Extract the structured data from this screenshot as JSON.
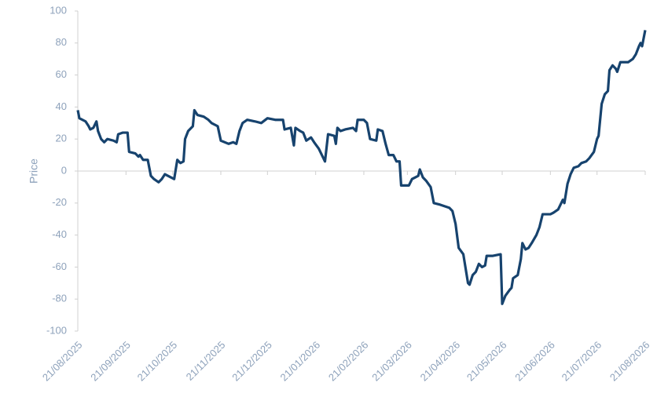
{
  "chart_data": {
    "type": "line",
    "y_label": "Price",
    "color": "#17436e",
    "x": [
      "21/08/2025",
      "22/08/2025",
      "26/08/2025",
      "28/08/2025",
      "29/08/2025",
      "31/08/2025",
      "02/09/2025",
      "03/09/2025",
      "05/09/2025",
      "07/09/2025",
      "09/09/2025",
      "13/09/2025",
      "15/09/2025",
      "16/09/2025",
      "19/09/2025",
      "22/09/2025",
      "23/09/2025",
      "27/09/2025",
      "29/09/2025",
      "30/09/2025",
      "02/10/2025",
      "05/10/2025",
      "06/10/2025",
      "07/10/2025",
      "09/10/2025",
      "12/10/2025",
      "14/10/2025",
      "16/10/2025",
      "20/10/2025",
      "22/10/2025",
      "24/10/2025",
      "26/10/2025",
      "28/10/2025",
      "29/10/2025",
      "31/10/2025",
      "03/11/2025",
      "04/11/2025",
      "06/11/2025",
      "10/11/2025",
      "13/11/2025",
      "15/11/2025",
      "19/11/2025",
      "21/11/2025",
      "26/11/2025",
      "29/11/2025",
      "01/12/2025",
      "03/12/2025",
      "05/12/2025",
      "08/12/2025",
      "13/12/2025",
      "17/12/2025",
      "21/12/2025",
      "26/12/2025",
      "31/12/2025",
      "01/01/2026",
      "05/01/2026",
      "07/01/2026",
      "08/01/2026",
      "11/01/2026",
      "13/01/2026",
      "15/01/2026",
      "18/01/2026",
      "20/01/2026",
      "23/01/2026",
      "26/01/2026",
      "27/01/2026",
      "29/01/2026",
      "02/02/2026",
      "03/02/2026",
      "04/02/2026",
      "06/02/2026",
      "09/02/2026",
      "14/02/2026",
      "16/02/2026",
      "17/02/2026",
      "21/02/2026",
      "23/02/2026",
      "25/02/2026",
      "01/03/2026",
      "02/03/2026",
      "05/03/2026",
      "07/03/2026",
      "09/03/2026",
      "12/03/2026",
      "14/03/2026",
      "16/03/2026",
      "17/03/2026",
      "22/03/2026",
      "24/03/2026",
      "26/03/2026",
      "28/03/2026",
      "29/03/2026",
      "31/03/2026",
      "02/04/2026",
      "05/04/2026",
      "07/04/2026",
      "11/04/2026",
      "14/04/2026",
      "17/04/2026",
      "19/04/2026",
      "21/04/2026",
      "23/04/2026",
      "26/04/2026",
      "29/04/2026",
      "30/04/2026",
      "02/05/2026",
      "04/05/2026",
      "06/05/2026",
      "08/05/2026",
      "10/05/2026",
      "11/05/2026",
      "15/05/2026",
      "20/05/2026",
      "21/05/2026",
      "23/05/2026",
      "26/05/2026",
      "27/05/2026",
      "28/05/2026",
      "31/05/2026",
      "02/06/2026",
      "03/06/2026",
      "05/06/2026",
      "07/06/2026",
      "09/06/2026",
      "12/06/2026",
      "14/06/2026",
      "16/06/2026",
      "21/06/2026",
      "23/06/2026",
      "26/06/2026",
      "28/06/2026",
      "29/06/2026",
      "30/06/2026",
      "02/07/2026",
      "04/07/2026",
      "06/07/2026",
      "09/07/2026",
      "11/07/2026",
      "14/07/2026",
      "16/07/2026",
      "19/07/2026",
      "21/07/2026",
      "22/07/2026",
      "24/07/2026",
      "26/07/2026",
      "28/07/2026",
      "29/07/2026",
      "31/07/2026",
      "02/08/2026",
      "03/08/2026",
      "05/08/2026",
      "10/08/2026",
      "13/08/2026",
      "15/08/2026",
      "17/08/2026",
      "18/08/2026",
      "19/08/2026",
      "21/08/2026"
    ],
    "values": [
      38,
      33,
      31,
      28,
      26,
      27,
      31,
      25,
      20,
      18,
      20,
      19,
      18,
      23,
      24,
      24,
      12,
      11,
      9,
      10,
      7,
      7,
      2,
      -3,
      -5,
      -7,
      -5,
      -2,
      -4,
      -5,
      7,
      5,
      6,
      20,
      25,
      28,
      38,
      35,
      34,
      32,
      30,
      28,
      19,
      17,
      18,
      17,
      25,
      30,
      32,
      31,
      30,
      33,
      32,
      32,
      26,
      27,
      16,
      27,
      25,
      24,
      19,
      21,
      18,
      14,
      8,
      6,
      23,
      22,
      17,
      27,
      25,
      26,
      27,
      25,
      32,
      32,
      30,
      20,
      19,
      26,
      25,
      17,
      10,
      10,
      6,
      6,
      -9,
      -9,
      -5,
      -4,
      -3,
      1,
      -4,
      -6,
      -10,
      -20,
      -21,
      -22,
      -23,
      -25,
      -33,
      -48,
      -52,
      -70,
      -71,
      -65,
      -63,
      -58,
      -60,
      -59,
      -53,
      -53,
      -52,
      -83,
      -78,
      -74,
      -73,
      -67,
      -65,
      -55,
      -45,
      -49,
      -48,
      -45,
      -40,
      -35,
      -27,
      -27,
      -26,
      -24,
      -20,
      -18,
      -20,
      -8,
      -2,
      2,
      3,
      5,
      6,
      8,
      12,
      20,
      22,
      42,
      48,
      50,
      63,
      66,
      64,
      62,
      68,
      68,
      70,
      73,
      78,
      80,
      78,
      88
    ],
    "xlim": [
      "21/08/2025",
      "21/08/2026"
    ],
    "xticks": [
      "21/08/2025",
      "21/09/2025",
      "21/10/2025",
      "21/11/2025",
      "21/12/2025",
      "21/01/2026",
      "21/02/2026",
      "21/03/2026",
      "21/04/2026",
      "21/05/2026",
      "21/06/2026",
      "21/07/2026",
      "21/08/2026"
    ],
    "ylim": [
      -100,
      100
    ],
    "yticks": [
      -100,
      -80,
      -60,
      -40,
      -20,
      0,
      20,
      40,
      60,
      80,
      100
    ]
  }
}
